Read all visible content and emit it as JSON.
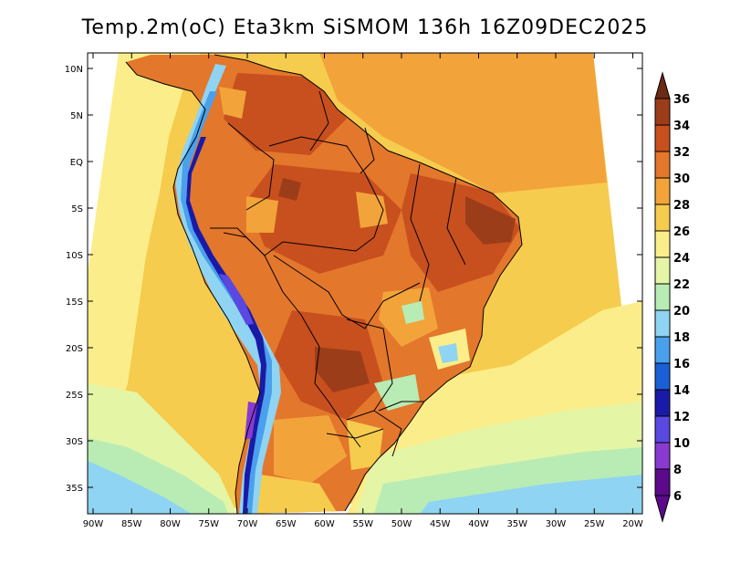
{
  "title": "Temp.2m(oC) Eta3km SiSMOM 136h 16Z09DEC2025",
  "axes": {
    "lat_ticks": [
      {
        "label": "10N",
        "value": 10
      },
      {
        "label": "5N",
        "value": 5
      },
      {
        "label": "EQ",
        "value": 0
      },
      {
        "label": "5S",
        "value": -5
      },
      {
        "label": "10S",
        "value": -10
      },
      {
        "label": "15S",
        "value": -15
      },
      {
        "label": "20S",
        "value": -20
      },
      {
        "label": "25S",
        "value": -25
      },
      {
        "label": "30S",
        "value": -30
      },
      {
        "label": "35S",
        "value": -35
      }
    ],
    "lon_ticks": [
      {
        "label": "90W",
        "value": -90
      },
      {
        "label": "85W",
        "value": -85
      },
      {
        "label": "80W",
        "value": -80
      },
      {
        "label": "75W",
        "value": -75
      },
      {
        "label": "70W",
        "value": -70
      },
      {
        "label": "65W",
        "value": -65
      },
      {
        "label": "60W",
        "value": -60
      },
      {
        "label": "55W",
        "value": -55
      },
      {
        "label": "50W",
        "value": -50
      },
      {
        "label": "45W",
        "value": -45
      },
      {
        "label": "40W",
        "value": -40
      },
      {
        "label": "35W",
        "value": -35
      },
      {
        "label": "30W",
        "value": -30
      },
      {
        "label": "25W",
        "value": -25
      },
      {
        "label": "20W",
        "value": -20
      }
    ]
  },
  "colorbar": {
    "levels": [
      {
        "label": "36",
        "color": "#6b2a12"
      },
      {
        "label": "34",
        "color": "#9c3d1a"
      },
      {
        "label": "32",
        "color": "#c8501e"
      },
      {
        "label": "30",
        "color": "#e3772c"
      },
      {
        "label": "28",
        "color": "#f2a43a"
      },
      {
        "label": "26",
        "color": "#f6cc4e"
      },
      {
        "label": "24",
        "color": "#fbee8a"
      },
      {
        "label": "22",
        "color": "#e4f5a6"
      },
      {
        "label": "20",
        "color": "#b8ecb4"
      },
      {
        "label": "18",
        "color": "#8fd4f2"
      },
      {
        "label": "16",
        "color": "#4aa0ec"
      },
      {
        "label": "14",
        "color": "#1a5fd6"
      },
      {
        "label": "12",
        "color": "#1a1aa8"
      },
      {
        "label": "10",
        "color": "#5a48e0"
      },
      {
        "label": "8",
        "color": "#8a3ad0"
      },
      {
        "label": "6",
        "color": "#5a0a8a"
      }
    ]
  }
}
